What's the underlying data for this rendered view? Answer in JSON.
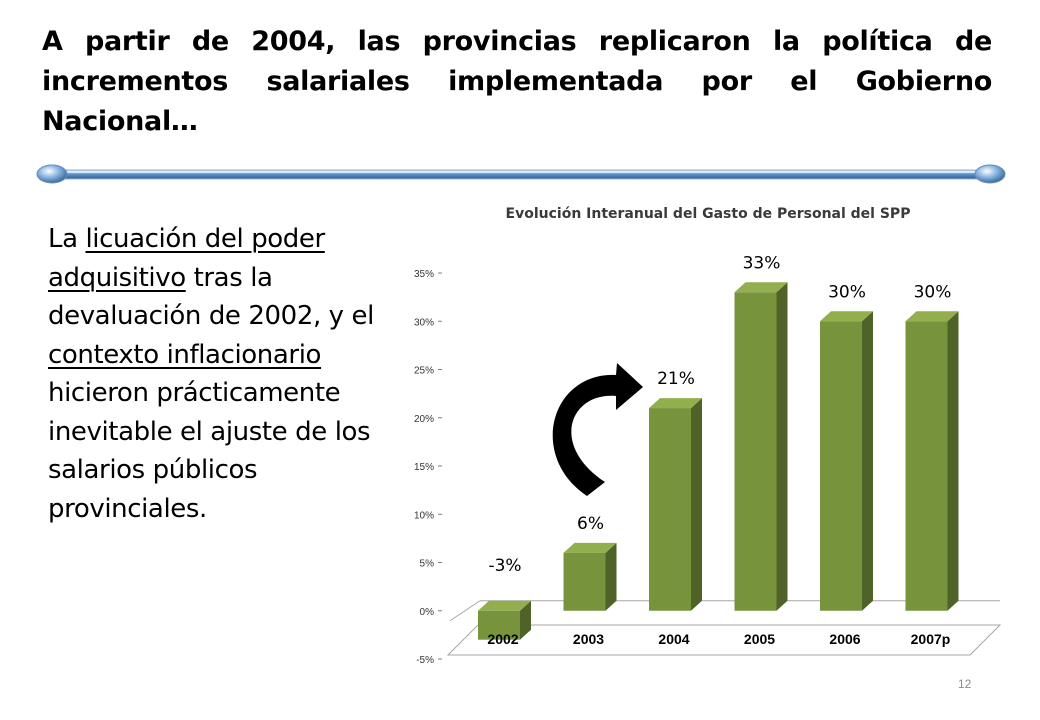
{
  "slide": {
    "title": "A partir de 2004, las provincias replicaron la política de incrementos salariales implementada por el Gobierno Nacional…",
    "body": {
      "t1": "La ",
      "u1": "licuación del poder adquisitivo",
      "t2": " tras la devaluación de 2002, y el ",
      "u2": "contexto inflacionario ",
      "t3": "hicieron prácticamente inevitable el ajuste de los salarios públicos provinciales."
    },
    "page_number": "12"
  },
  "colors": {
    "bar_front": "#77933C",
    "bar_side": "#4F6228",
    "bar_top": "#92AE4D",
    "divider": "#5B9BD5"
  },
  "chart_data": {
    "type": "bar",
    "title": "Evolución Interanual del Gasto de Personal del SPP",
    "categories": [
      "2002",
      "2003",
      "2004",
      "2005",
      "2006",
      "2007p"
    ],
    "values": [
      -3,
      6,
      21,
      33,
      30,
      30
    ],
    "data_labels": [
      "-3%",
      "6%",
      "21%",
      "33%",
      "30%",
      "30%"
    ],
    "y_ticks": [
      "-5%",
      "0%",
      "5%",
      "10%",
      "15%",
      "20%",
      "25%",
      "30%",
      "35%"
    ],
    "ylim": [
      -5,
      35
    ],
    "grid": false,
    "legend": "none",
    "annotation": "curved-arrow-from-2003-to-2004"
  }
}
